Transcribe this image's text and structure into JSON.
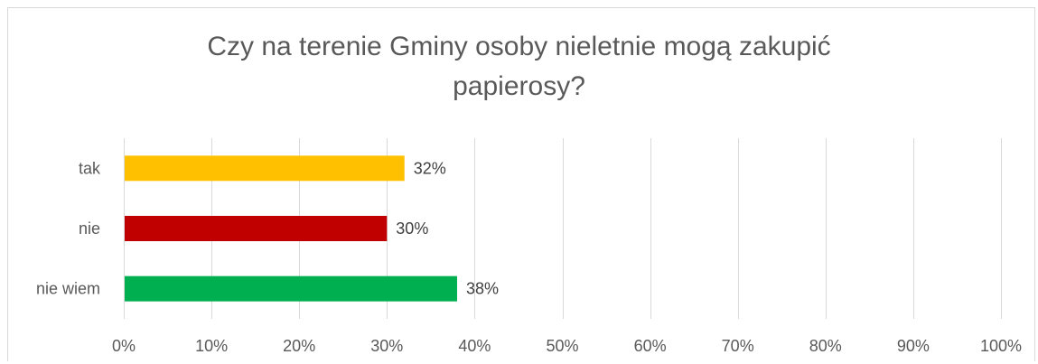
{
  "chart_data": {
    "type": "bar",
    "orientation": "horizontal",
    "title": "Czy na terenie Gminy osoby nieletnie mogą zakupić papierosy?",
    "title_lines": [
      "Czy na terenie Gminy osoby nieletnie mogą zakupić",
      "papierosy?"
    ],
    "categories": [
      "tak",
      "nie",
      "nie wiem"
    ],
    "values": [
      32,
      30,
      38
    ],
    "data_labels": [
      "32%",
      "30%",
      "38%"
    ],
    "colors": [
      "#ffc000",
      "#c00000",
      "#00b050"
    ],
    "xlim": [
      0,
      100
    ],
    "x_ticks": [
      "0%",
      "10%",
      "20%",
      "30%",
      "40%",
      "50%",
      "60%",
      "70%",
      "80%",
      "90%",
      "100%"
    ],
    "grid": true,
    "legend": "none"
  }
}
